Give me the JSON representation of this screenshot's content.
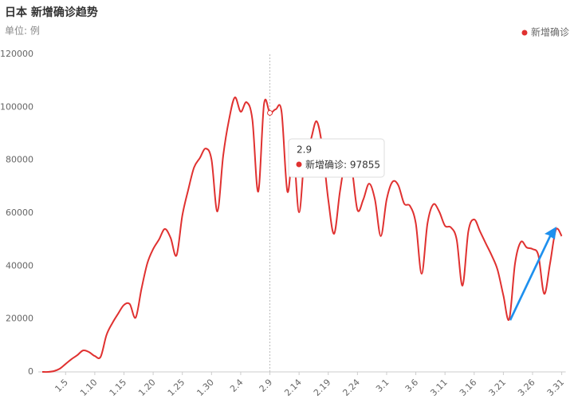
{
  "chart_data": {
    "type": "line",
    "title": "日本 新增确诊趋势",
    "subtitle": "单位: 例",
    "categories": [
      null,
      null,
      null,
      null,
      "1.5",
      null,
      null,
      null,
      null,
      "1.10",
      null,
      null,
      null,
      null,
      "1.15",
      null,
      null,
      null,
      null,
      "1.20",
      null,
      null,
      null,
      null,
      "1.25",
      null,
      null,
      null,
      null,
      "1.30",
      null,
      null,
      null,
      null,
      "2.4",
      null,
      null,
      null,
      null,
      "2.9",
      null,
      null,
      null,
      null,
      "2.14",
      null,
      null,
      null,
      null,
      "2.19",
      null,
      null,
      null,
      null,
      "2.24",
      null,
      null,
      null,
      null,
      "3.1",
      null,
      null,
      null,
      null,
      "3.6",
      null,
      null,
      null,
      null,
      "3.11",
      null,
      null,
      null,
      null,
      "3.16",
      null,
      null,
      null,
      null,
      "3.21",
      null,
      null,
      null,
      null,
      "3.26",
      null,
      null,
      null,
      null,
      "3.31"
    ],
    "series": [
      {
        "name": "新增确诊",
        "color": "#e03130",
        "values": [
          0,
          0,
          300,
          1200,
          3000,
          4800,
          6300,
          8100,
          7500,
          6000,
          5700,
          13900,
          18400,
          22000,
          25300,
          25600,
          20500,
          31400,
          41000,
          46400,
          50000,
          54000,
          50600,
          44000,
          59100,
          68700,
          77200,
          80800,
          84400,
          80200,
          60600,
          81700,
          95300,
          103700,
          98300,
          101900,
          95300,
          68100,
          101300,
          97855,
          99200,
          98300,
          68100,
          83200,
          60300,
          83200,
          87700,
          94700,
          84700,
          65100,
          52200,
          68100,
          80200,
          77200,
          61200,
          65100,
          71100,
          65100,
          51300,
          65100,
          71800,
          70500,
          63600,
          62700,
          56100,
          37100,
          56100,
          63300,
          60600,
          55200,
          54600,
          50000,
          32600,
          53100,
          57600,
          53100,
          48500,
          44000,
          38600,
          28900,
          19900,
          41000,
          49100,
          47000,
          46400,
          44000,
          29500,
          41000,
          53700,
          51300
        ]
      }
    ],
    "ylim": [
      0,
      120000
    ],
    "yticks": [
      0,
      20000,
      40000,
      60000,
      80000,
      100000,
      120000
    ],
    "legend": "top-right",
    "tooltip": {
      "title": "2.9",
      "text": "新增确诊: 97855"
    }
  }
}
